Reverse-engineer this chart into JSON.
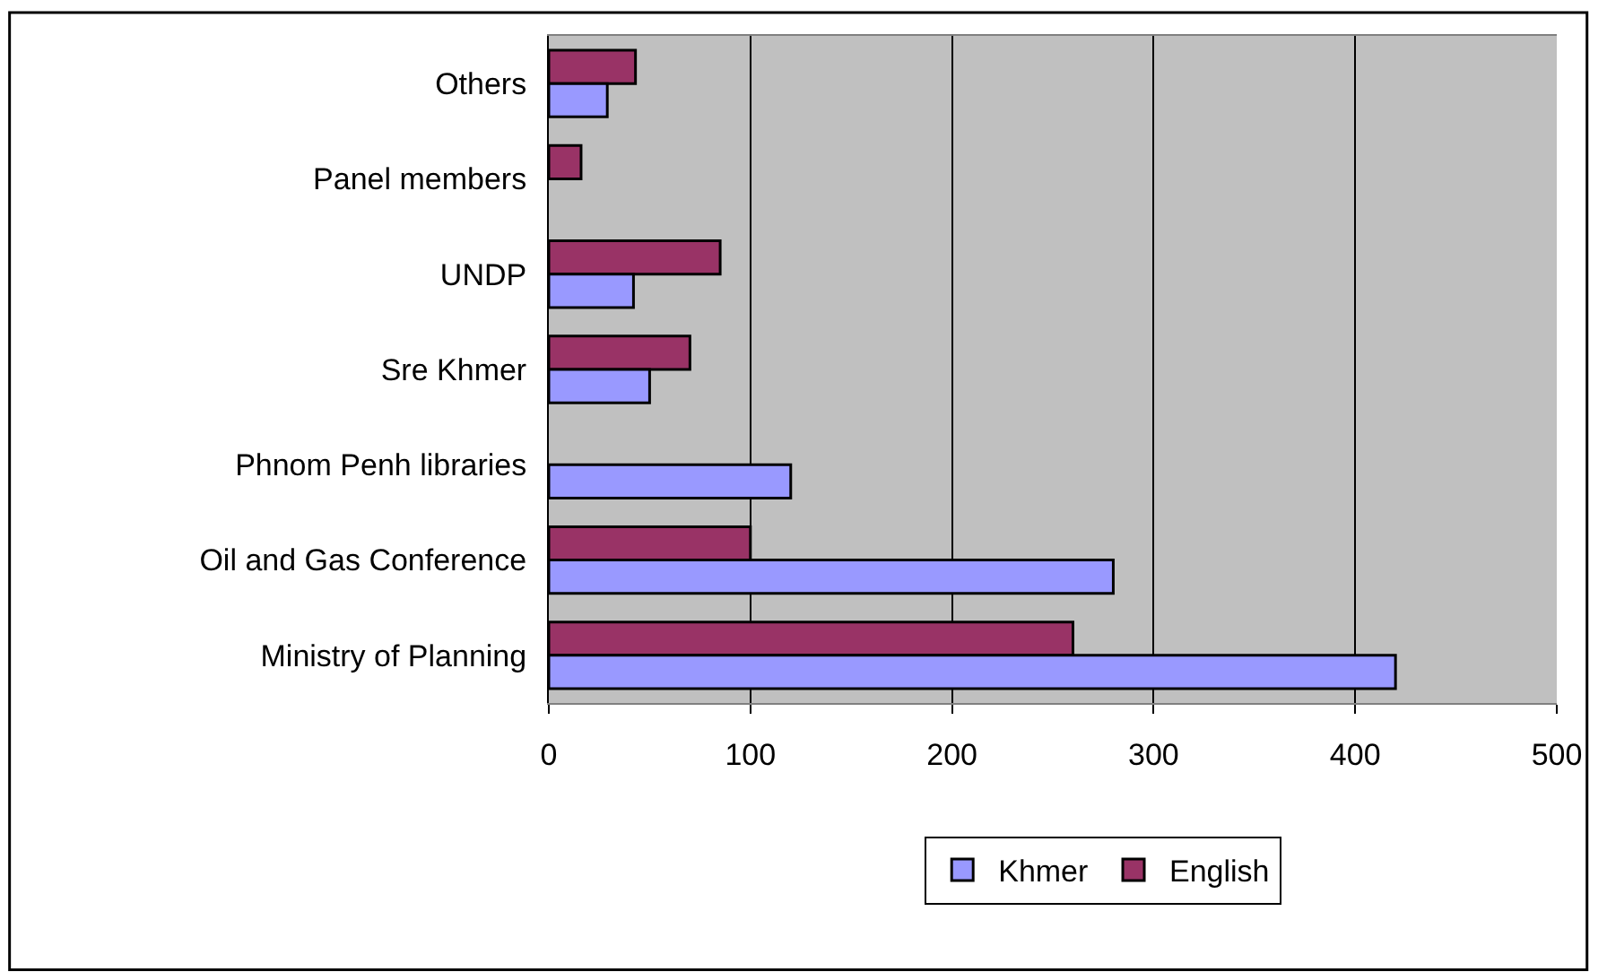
{
  "chart_data": {
    "type": "bar",
    "orientation": "horizontal",
    "categories": [
      "Others",
      "Panel members",
      "UNDP",
      "Sre Khmer",
      "Phnom Penh libraries",
      "Oil and Gas Conference",
      "Ministry of Planning"
    ],
    "series": [
      {
        "name": "Khmer",
        "color": "#9999ff",
        "values": [
          29,
          null,
          42,
          50,
          120,
          280,
          420
        ]
      },
      {
        "name": "English",
        "color": "#993366",
        "values": [
          43,
          16,
          85,
          70,
          null,
          100,
          260
        ]
      }
    ],
    "xlim": [
      0,
      500
    ],
    "xticks": [
      0,
      100,
      200,
      300,
      400,
      500
    ],
    "grid": "x",
    "legend": "bottom"
  }
}
